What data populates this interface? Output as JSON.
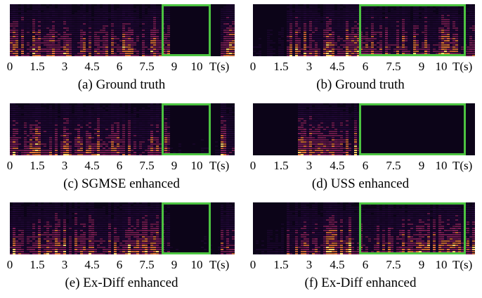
{
  "colors": {
    "highlight_box": "#4cc441",
    "spec_bg": "#0c0418",
    "spec_low": "#3a0b5a",
    "spec_mid": "#b12a74",
    "spec_high": "#f57d3b",
    "spec_peak": "#fcd36a"
  },
  "figure": {
    "panels": [
      {
        "caption": "(a) Ground truth",
        "spectrogram": "clip-a-ground-truth",
        "box_range": [
          8.5,
          12.0
        ],
        "dark_range": null
      },
      {
        "caption": "(b) Ground truth",
        "spectrogram": "clip-b-ground-truth",
        "box_range": [
          6.0,
          12.0
        ],
        "dark_range": null
      },
      {
        "caption": "(c) SGMSE enhanced",
        "spectrogram": "clip-a-sgmse",
        "box_range": [
          8.5,
          12.0
        ],
        "dark_range": null
      },
      {
        "caption": "(d) USS enhanced",
        "spectrogram": "clip-b-uss",
        "box_range": [
          6.0,
          12.0
        ],
        "dark_range": [
          6.0,
          12.0
        ]
      },
      {
        "caption": "(e) Ex-Diff enhanced",
        "spectrogram": "clip-a-exdiff",
        "box_range": [
          8.5,
          12.0
        ],
        "dark_range": null
      },
      {
        "caption": "(f) Ex-Diff enhanced",
        "spectrogram": "clip-b-exdiff",
        "box_range": [
          6.0,
          12.0
        ],
        "dark_range": null
      }
    ],
    "time_axis": {
      "ticks": [
        "0",
        "1.5",
        "3",
        "4.5",
        "6",
        "7.5",
        "9",
        "10"
      ],
      "unit": "T(s)"
    }
  }
}
